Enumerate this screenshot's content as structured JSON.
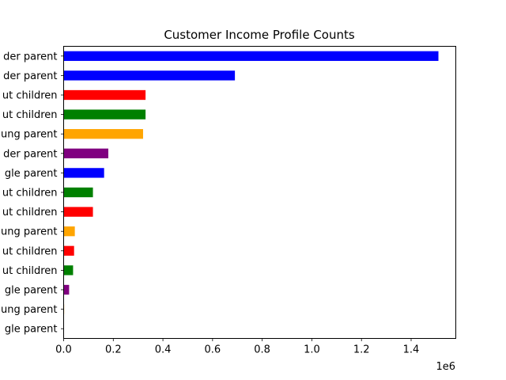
{
  "chart_data": {
    "type": "bar",
    "orientation": "horizontal",
    "title": "Customer Income Profile Counts",
    "xlabel": "",
    "ylabel": "",
    "x_offset_label": "1e6",
    "xlim": [
      0,
      1580000
    ],
    "x_ticks": [
      0,
      200000,
      400000,
      600000,
      800000,
      1000000,
      1200000,
      1400000
    ],
    "x_tick_labels": [
      "0.0",
      "0.2",
      "0.4",
      "0.6",
      "0.8",
      "1.0",
      "1.2",
      "1.4"
    ],
    "categories": [
      "der parent",
      "der parent",
      "ut children",
      "ut children",
      "ung parent",
      "der parent",
      "gle parent",
      "ut children",
      "ut children",
      "ung parent",
      "ut children",
      "ut children",
      "gle parent",
      "ung parent",
      "gle parent"
    ],
    "values": [
      1510000,
      690000,
      330000,
      330000,
      320000,
      180000,
      163000,
      118000,
      118000,
      45000,
      42000,
      38000,
      22000,
      2000,
      1000
    ],
    "bar_colors": [
      "#0000ff",
      "#0000ff",
      "#ff0000",
      "#008000",
      "#ffa500",
      "#800080",
      "#0000ff",
      "#008000",
      "#ff0000",
      "#ffa500",
      "#ff0000",
      "#008000",
      "#800080",
      "#ffa500",
      "#0000ff"
    ],
    "grid": false,
    "legend": "none"
  }
}
